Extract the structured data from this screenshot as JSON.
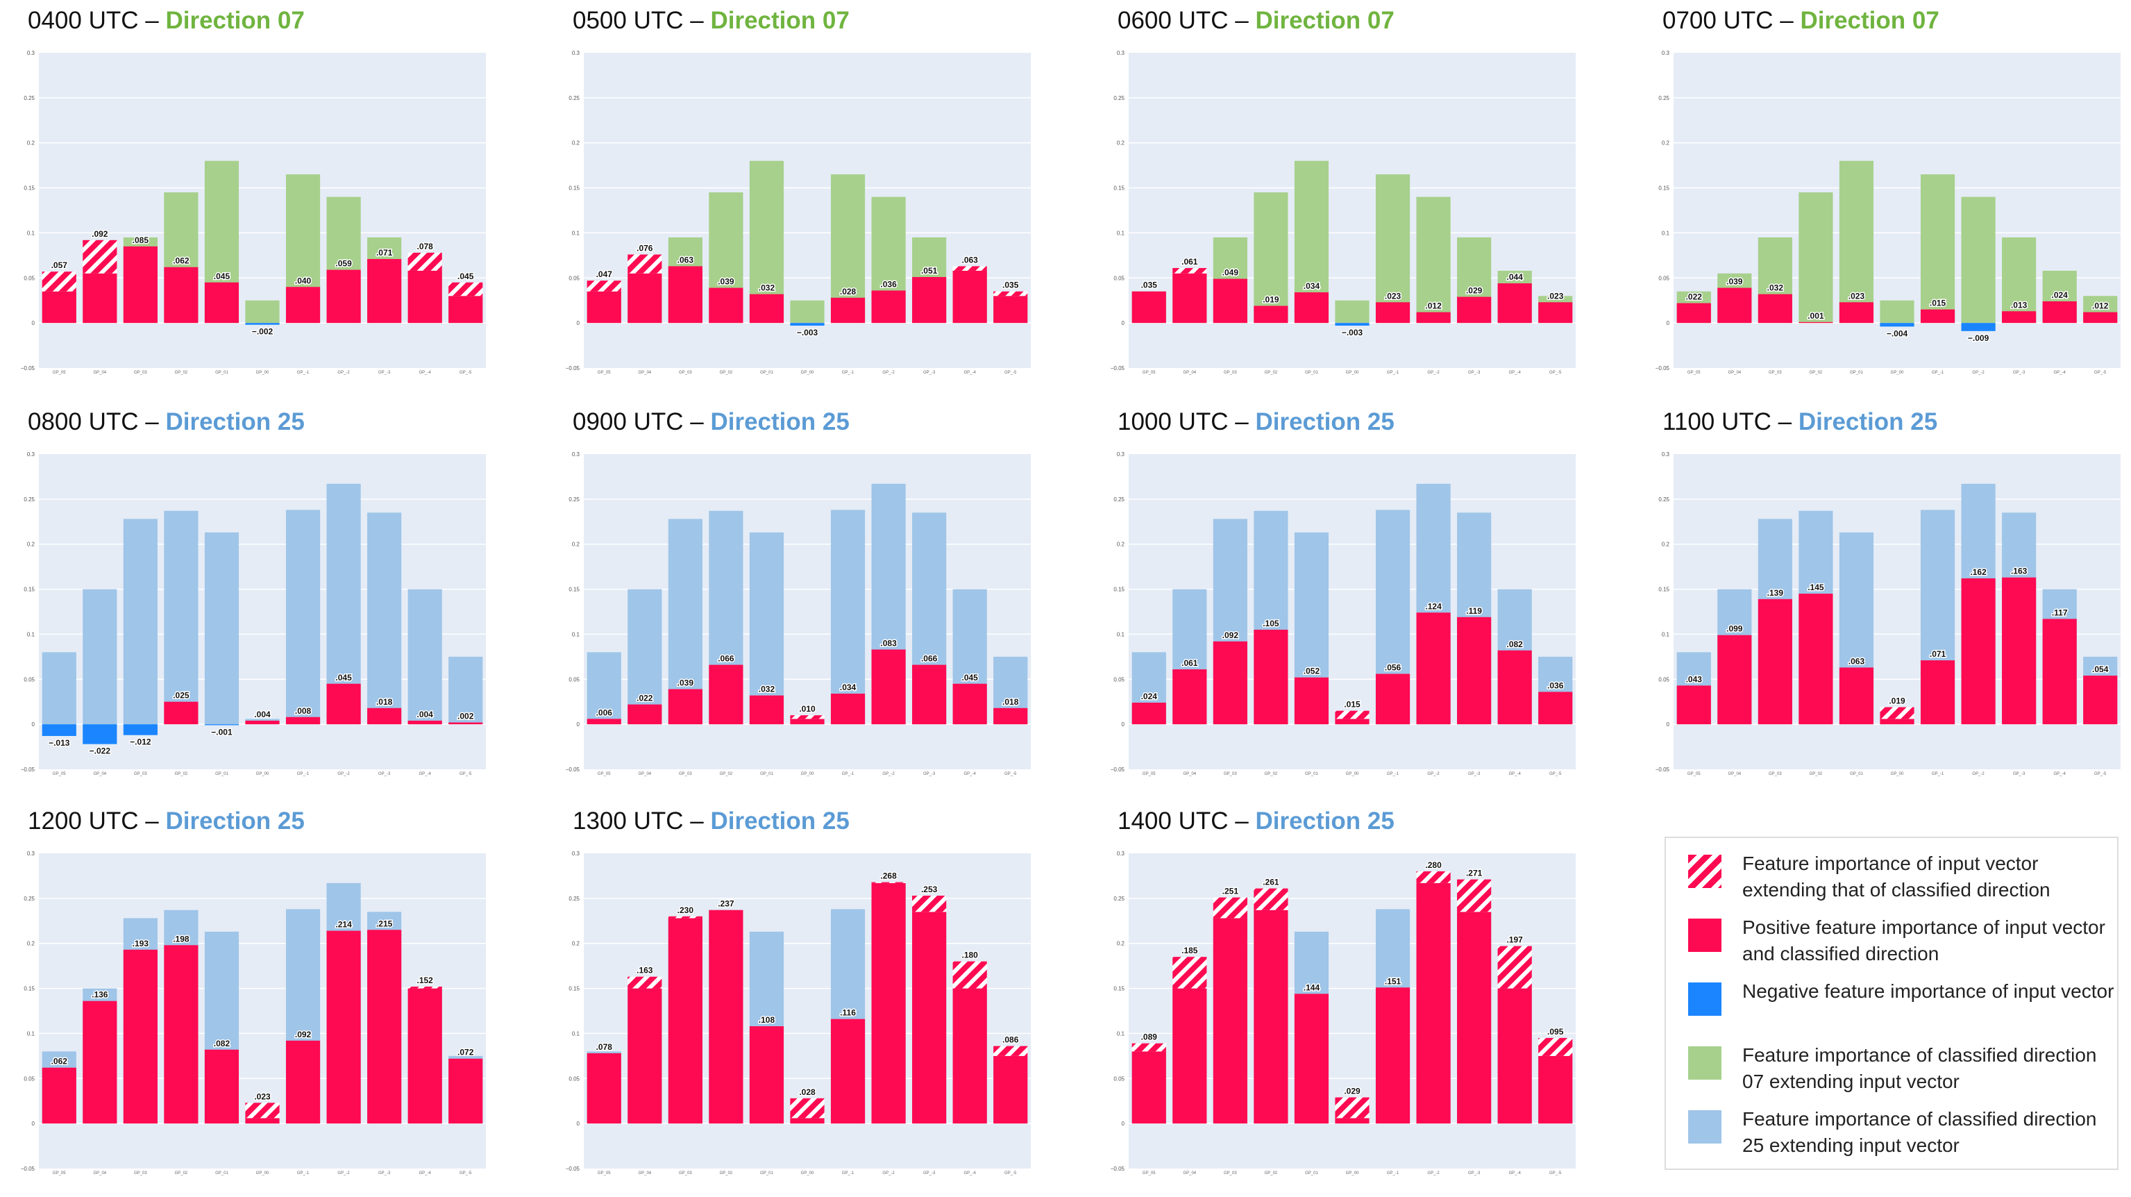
{
  "colors": {
    "red": "#fe0a52",
    "blue": "#1a85ff",
    "green": "#a7d08c",
    "lightblue": "#9fc5e8",
    "plot_bg": "#e5ecf6",
    "dir07_text": "#6fb43f",
    "dir25_text": "#5b9bd5"
  },
  "panels": [
    {
      "time": "0400 UTC",
      "sep": " – ",
      "direction_label": "Direction 07",
      "direction": "07"
    },
    {
      "time": "0500 UTC",
      "sep": " – ",
      "direction_label": "Direction 07",
      "direction": "07"
    },
    {
      "time": "0600 UTC",
      "sep": " – ",
      "direction_label": "Direction 07",
      "direction": "07"
    },
    {
      "time": "0700 UTC",
      "sep": " – ",
      "direction_label": "Direction 07",
      "direction": "07"
    },
    {
      "time": "0800 UTC",
      "sep": " – ",
      "direction_label": "Direction 25",
      "direction": "25"
    },
    {
      "time": "0900 UTC",
      "sep": " – ",
      "direction_label": "Direction 25",
      "direction": "25"
    },
    {
      "time": "1000 UTC",
      "sep": " – ",
      "direction_label": "Direction 25",
      "direction": "25"
    },
    {
      "time": "1100 UTC",
      "sep": " – ",
      "direction_label": "Direction 25",
      "direction": "25"
    },
    {
      "time": "1200 UTC",
      "sep": " – ",
      "direction_label": "Direction 25",
      "direction": "25"
    },
    {
      "time": "1300 UTC",
      "sep": " – ",
      "direction_label": "Direction 25",
      "direction": "25"
    },
    {
      "time": "1400 UTC",
      "sep": " – ",
      "direction_label": "Direction 25",
      "direction": "25"
    }
  ],
  "chart_data": {
    "type": "bar",
    "layout": "stacked-overlay",
    "categories": [
      "GP_05",
      "GP_04",
      "GP_03",
      "GP_02",
      "GP_01",
      "GP_00",
      "GP_-1",
      "GP_-2",
      "GP_-3",
      "GP_-4",
      "GP_-5"
    ],
    "yticks": [
      -0.05,
      0,
      0.05,
      0.1,
      0.15,
      0.2,
      0.25,
      0.3
    ],
    "ylim": [
      -0.05,
      0.3
    ],
    "direction_profiles": {
      "07": [
        0.035,
        0.055,
        0.095,
        0.145,
        0.18,
        0.025,
        0.165,
        0.14,
        0.095,
        0.058,
        0.03
      ],
      "25": [
        0.08,
        0.15,
        0.228,
        0.237,
        0.213,
        0.006,
        0.238,
        0.267,
        0.235,
        0.15,
        0.075
      ]
    },
    "series": [
      {
        "time": "0400 UTC",
        "direction": "07",
        "values": [
          0.057,
          0.092,
          0.085,
          0.062,
          0.045,
          -0.002,
          0.04,
          0.059,
          0.071,
          0.078,
          0.045
        ]
      },
      {
        "time": "0500 UTC",
        "direction": "07",
        "values": [
          0.047,
          0.076,
          0.063,
          0.039,
          0.032,
          -0.003,
          0.028,
          0.036,
          0.051,
          0.063,
          0.035
        ]
      },
      {
        "time": "0600 UTC",
        "direction": "07",
        "values": [
          0.035,
          0.061,
          0.049,
          0.019,
          0.034,
          -0.003,
          0.023,
          0.012,
          0.029,
          0.044,
          0.023
        ]
      },
      {
        "time": "0700 UTC",
        "direction": "07",
        "values": [
          0.022,
          0.039,
          0.032,
          0.001,
          0.023,
          -0.004,
          0.015,
          -0.009,
          0.013,
          0.024,
          0.012
        ]
      },
      {
        "time": "0800 UTC",
        "direction": "25",
        "values": [
          -0.013,
          -0.022,
          -0.012,
          0.025,
          -0.001,
          0.004,
          0.008,
          0.045,
          0.018,
          0.004,
          0.002
        ]
      },
      {
        "time": "0900 UTC",
        "direction": "25",
        "values": [
          0.006,
          0.022,
          0.039,
          0.066,
          0.032,
          0.01,
          0.034,
          0.083,
          0.066,
          0.045,
          0.018
        ]
      },
      {
        "time": "1000 UTC",
        "direction": "25",
        "values": [
          0.024,
          0.061,
          0.092,
          0.105,
          0.052,
          0.015,
          0.056,
          0.124,
          0.119,
          0.082,
          0.036
        ]
      },
      {
        "time": "1100 UTC",
        "direction": "25",
        "values": [
          0.043,
          0.099,
          0.139,
          0.145,
          0.063,
          0.019,
          0.071,
          0.162,
          0.163,
          0.117,
          0.054
        ]
      },
      {
        "time": "1200 UTC",
        "direction": "25",
        "values": [
          0.062,
          0.136,
          0.193,
          0.198,
          0.082,
          0.023,
          0.092,
          0.214,
          0.215,
          0.152,
          0.072
        ]
      },
      {
        "time": "1300 UTC",
        "direction": "25",
        "values": [
          0.078,
          0.163,
          0.23,
          0.237,
          0.108,
          0.028,
          0.116,
          0.268,
          0.253,
          0.18,
          0.086
        ]
      },
      {
        "time": "1400 UTC",
        "direction": "25",
        "values": [
          0.089,
          0.185,
          0.251,
          0.261,
          0.144,
          0.029,
          0.151,
          0.28,
          0.271,
          0.197,
          0.095
        ]
      }
    ]
  },
  "legend": {
    "items": [
      {
        "swatch": "hatch",
        "text": "Feature importance of input vector extending that of classified direction"
      },
      {
        "swatch": "red",
        "text": "Positive feature importance of input vector and classified direction"
      },
      {
        "swatch": "blue",
        "text": "Negative feature importance of input vector"
      },
      {
        "swatch": "green",
        "text": "Feature importance of classified direction 07 extending input vector"
      },
      {
        "swatch": "lightblue",
        "text": "Feature importance of classified direction 25 extending input vector"
      }
    ]
  }
}
